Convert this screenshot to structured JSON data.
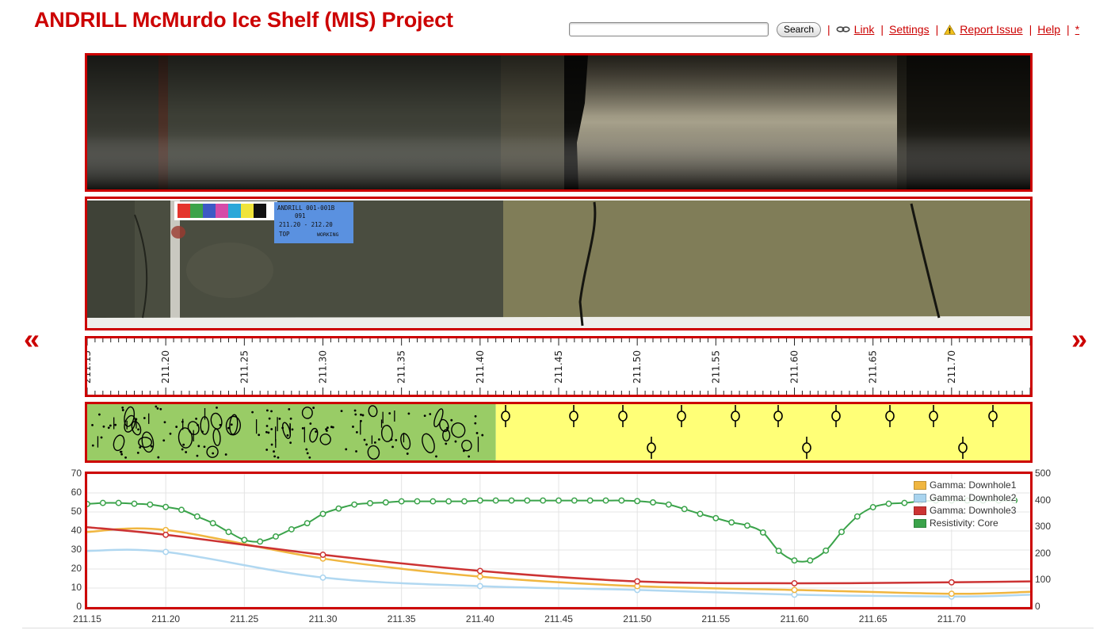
{
  "header": {
    "title": "ANDRILL McMurdo Ice Shelf (MIS) Project"
  },
  "toolbar": {
    "search_value": "",
    "search_label": "Search",
    "link_label": "Link",
    "settings_label": "Settings",
    "report_label": "Report Issue",
    "help_label": "Help",
    "star_label": "*",
    "separator": "|"
  },
  "nav": {
    "prev": "«",
    "next": "»"
  },
  "core_label": {
    "line1": "ANDRILL 001-001B",
    "line2": "091",
    "line3": "211.20 - 212.20",
    "line4": "TOP",
    "line5": "WORKING"
  },
  "depth_ticks": [
    "211.15",
    "211.20",
    "211.25",
    "211.30",
    "211.35",
    "211.40",
    "211.45",
    "211.50",
    "211.55",
    "211.60",
    "211.65",
    "211.70"
  ],
  "lithology": [
    {
      "name": "diamictite",
      "from": 211.15,
      "to": 211.41,
      "color": "#99cc66"
    },
    {
      "name": "mudstone",
      "from": 211.41,
      "to": 211.75,
      "color": "#ffff77"
    }
  ],
  "colors": {
    "accent": "#cc0000",
    "gridline": "#e4e4e4"
  },
  "chart_data": {
    "type": "line",
    "xlim": [
      211.15,
      211.75
    ],
    "ylim_left": [
      0,
      70
    ],
    "ylim_right": [
      0,
      500
    ],
    "x_ticks": [
      "211.15",
      "211.20",
      "211.25",
      "211.30",
      "211.35",
      "211.40",
      "211.45",
      "211.50",
      "211.55",
      "211.60",
      "211.65",
      "211.70"
    ],
    "y_left_ticks": [
      "0",
      "10",
      "20",
      "30",
      "40",
      "50",
      "60",
      "70"
    ],
    "y_right_ticks": [
      "0",
      "100",
      "200",
      "300",
      "400",
      "500"
    ],
    "legend_position": "top-right",
    "series": [
      {
        "name": "Gamma: Downhole1",
        "color": "#f0b640",
        "axis": "left",
        "x": [
          211.15,
          211.2,
          211.3,
          211.4,
          211.5,
          211.6,
          211.7,
          211.75
        ],
        "y": [
          39.5,
          40.5,
          25.5,
          16,
          11,
          9,
          7,
          8
        ],
        "markers": [
          211.2,
          211.3,
          211.4,
          211.5,
          211.6,
          211.7
        ]
      },
      {
        "name": "Gamma: Downhole2",
        "color": "#a9d4ef",
        "axis": "left",
        "x": [
          211.15,
          211.2,
          211.3,
          211.4,
          211.5,
          211.6,
          211.7,
          211.75
        ],
        "y": [
          29.5,
          29,
          15.5,
          11,
          9,
          6.5,
          5.5,
          6.5
        ],
        "markers": [
          211.2,
          211.3,
          211.4,
          211.5,
          211.6,
          211.7
        ]
      },
      {
        "name": "Gamma: Downhole3",
        "color": "#cc3333",
        "axis": "left",
        "x": [
          211.15,
          211.2,
          211.3,
          211.4,
          211.5,
          211.6,
          211.7,
          211.75
        ],
        "y": [
          42,
          38,
          27.5,
          19,
          13.5,
          12.5,
          13,
          13.5
        ],
        "markers": [
          211.2,
          211.3,
          211.4,
          211.5,
          211.6,
          211.7
        ]
      },
      {
        "name": "Resistivity: Core",
        "color": "#3aa34a",
        "axis": "right",
        "x": [
          211.15,
          211.16,
          211.17,
          211.18,
          211.19,
          211.2,
          211.21,
          211.22,
          211.23,
          211.24,
          211.25,
          211.26,
          211.27,
          211.28,
          211.29,
          211.3,
          211.31,
          211.32,
          211.33,
          211.34,
          211.35,
          211.36,
          211.37,
          211.38,
          211.39,
          211.4,
          211.41,
          211.42,
          211.43,
          211.44,
          211.45,
          211.46,
          211.47,
          211.48,
          211.49,
          211.5,
          211.51,
          211.52,
          211.53,
          211.54,
          211.55,
          211.56,
          211.57,
          211.58,
          211.59,
          211.6,
          211.61,
          211.62,
          211.63,
          211.64,
          211.65,
          211.66,
          211.67,
          211.68,
          211.69,
          211.7,
          211.71,
          211.72,
          211.73,
          211.74
        ],
        "y": [
          387,
          391,
          391,
          388,
          385,
          376,
          365,
          340,
          315,
          282,
          252,
          246,
          265,
          292,
          315,
          350,
          370,
          385,
          390,
          393,
          397,
          397,
          397,
          397,
          397,
          400,
          400,
          400,
          400,
          400,
          400,
          400,
          400,
          400,
          400,
          398,
          393,
          385,
          368,
          350,
          334,
          318,
          306,
          280,
          211,
          175,
          175,
          212,
          282,
          340,
          375,
          388,
          391,
          397,
          400,
          400,
          400,
          400,
          400,
          400
        ],
        "markers": "all"
      }
    ]
  }
}
